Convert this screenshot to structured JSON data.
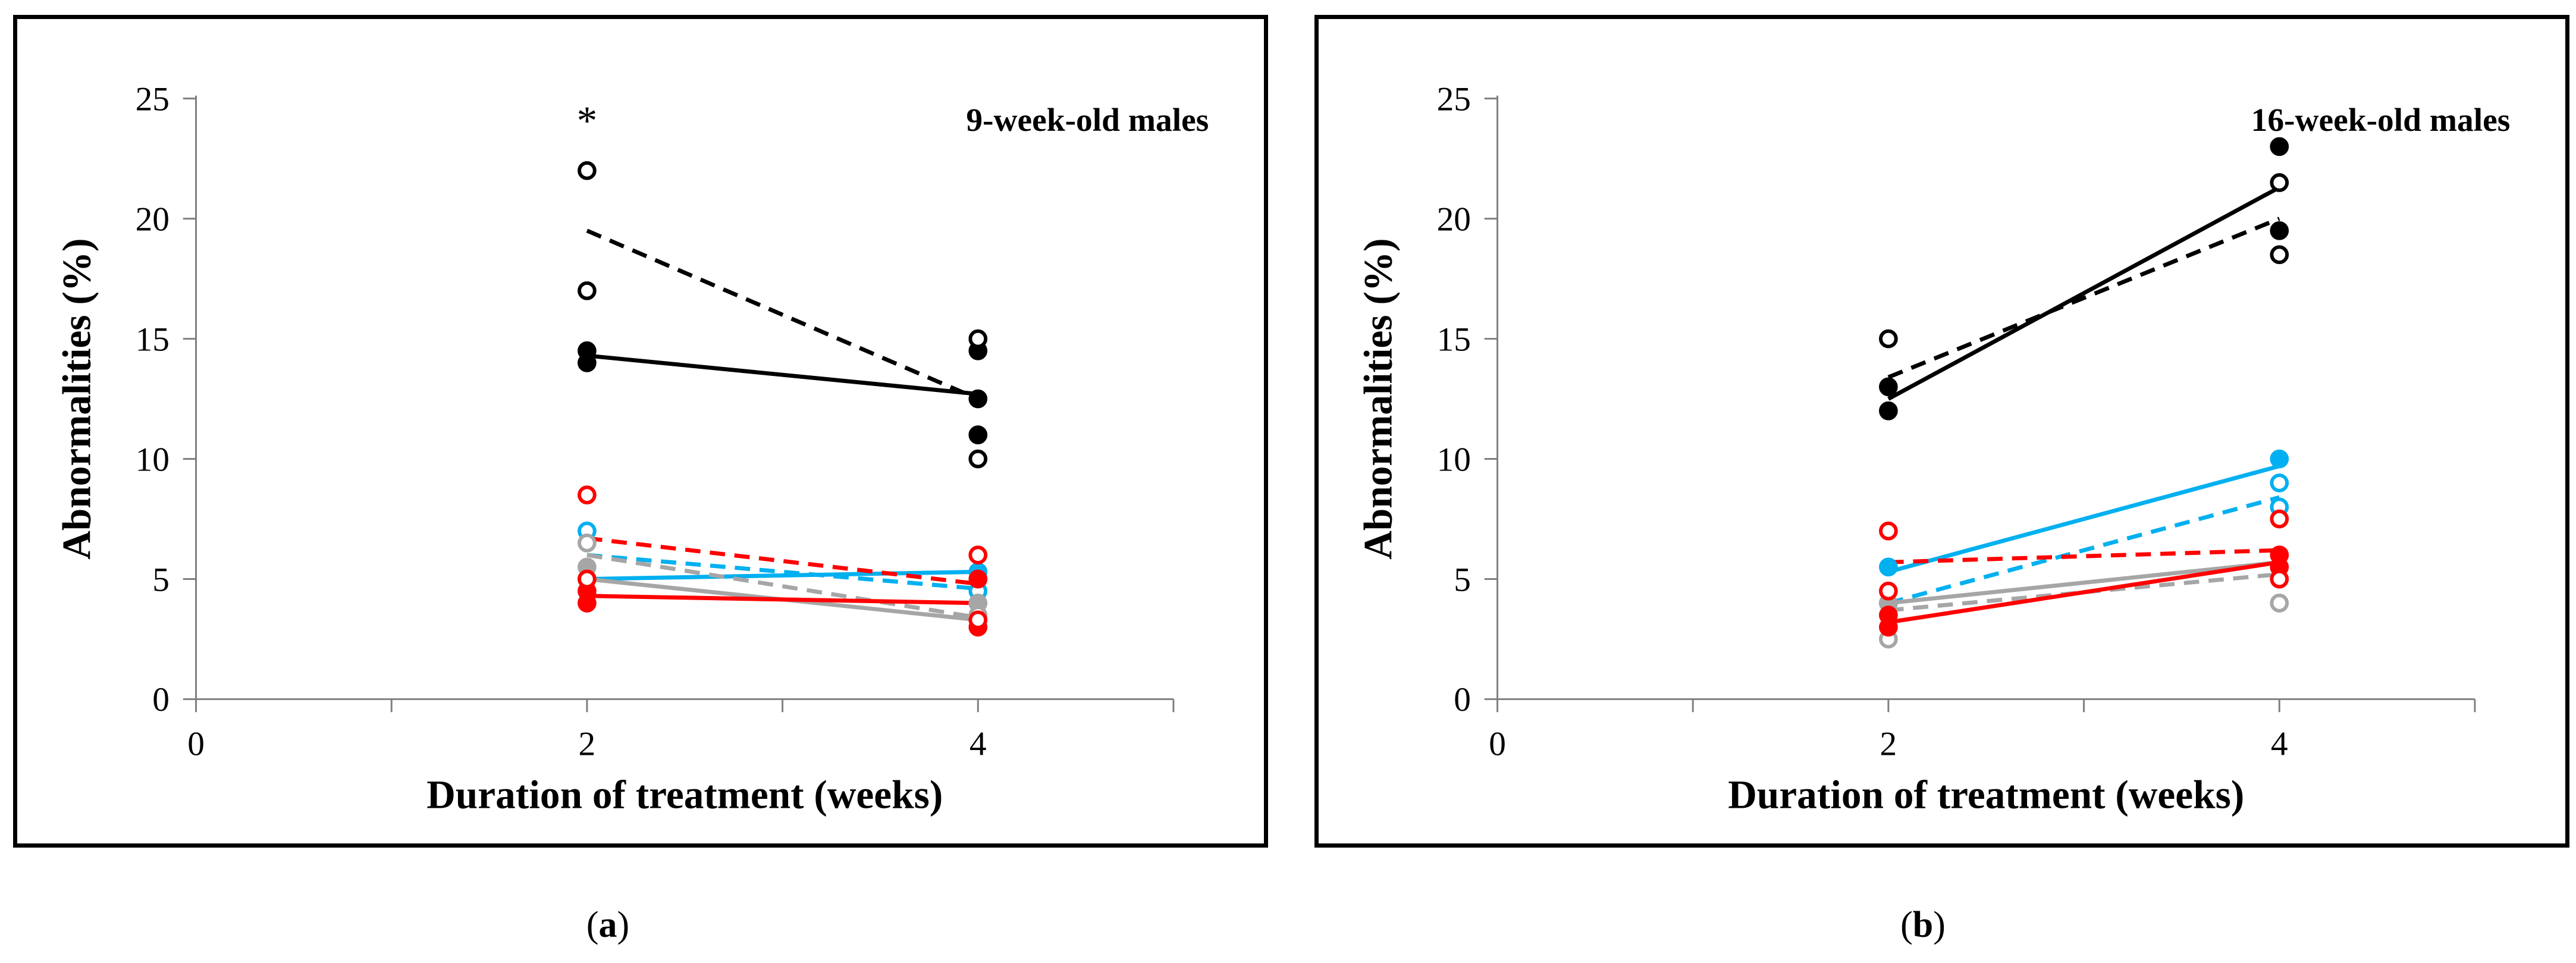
{
  "chart_data": [
    {
      "type": "scatter",
      "panel_label": "a",
      "title": "9-week-old males",
      "annotation": "*",
      "annotation_x": 2,
      "annotation_y": 24,
      "xlabel": "Duration of treatment (weeks)",
      "ylabel": "Abnormalities (%)",
      "xlim": [
        0,
        5
      ],
      "ylim": [
        0,
        25
      ],
      "xticks": [
        0,
        2,
        4
      ],
      "yticks": [
        0,
        5,
        10,
        15,
        20,
        25
      ],
      "series": [
        {
          "name": "black-filled",
          "color": "#000000",
          "marker": "filled",
          "points": [
            [
              2,
              14
            ],
            [
              2,
              14.5
            ],
            [
              4,
              14.5
            ],
            [
              4,
              11
            ],
            [
              4,
              12.5
            ]
          ]
        },
        {
          "name": "black-open",
          "color": "#000000",
          "marker": "open",
          "points": [
            [
              2,
              22
            ],
            [
              2,
              17
            ],
            [
              4,
              15
            ],
            [
              4,
              10
            ]
          ]
        },
        {
          "name": "blue-filled",
          "color": "#00B0F0",
          "marker": "filled",
          "points": [
            [
              2,
              5
            ],
            [
              4,
              5.3
            ]
          ]
        },
        {
          "name": "blue-open",
          "color": "#00B0F0",
          "marker": "open",
          "points": [
            [
              2,
              7
            ],
            [
              4,
              4.5
            ]
          ]
        },
        {
          "name": "gray-filled",
          "color": "#A6A6A6",
          "marker": "filled",
          "points": [
            [
              2,
              5.5
            ],
            [
              4,
              4
            ]
          ]
        },
        {
          "name": "gray-open",
          "color": "#A6A6A6",
          "marker": "open",
          "points": [
            [
              2,
              6.5
            ],
            [
              4,
              3.5
            ]
          ]
        },
        {
          "name": "red-filled",
          "color": "#FF0000",
          "marker": "filled",
          "points": [
            [
              2,
              4
            ],
            [
              2,
              4.5
            ],
            [
              4,
              3
            ],
            [
              4,
              5
            ]
          ]
        },
        {
          "name": "red-open",
          "color": "#FF0000",
          "marker": "open",
          "points": [
            [
              2,
              8.5
            ],
            [
              2,
              5
            ],
            [
              4,
              6
            ],
            [
              4,
              3.3
            ]
          ]
        }
      ],
      "trendlines": [
        {
          "color": "#000000",
          "style": "solid",
          "x": [
            2,
            4
          ],
          "y": [
            14.3,
            12.7
          ]
        },
        {
          "color": "#000000",
          "style": "dashed",
          "x": [
            2,
            4
          ],
          "y": [
            19.5,
            12.5
          ]
        },
        {
          "color": "#00B0F0",
          "style": "solid",
          "x": [
            2,
            4
          ],
          "y": [
            5.0,
            5.3
          ]
        },
        {
          "color": "#00B0F0",
          "style": "dashed",
          "x": [
            2,
            4
          ],
          "y": [
            6.0,
            4.6
          ]
        },
        {
          "color": "#A6A6A6",
          "style": "solid",
          "x": [
            2,
            4
          ],
          "y": [
            5.0,
            3.3
          ]
        },
        {
          "color": "#A6A6A6",
          "style": "dashed",
          "x": [
            2,
            4
          ],
          "y": [
            6.0,
            3.4
          ]
        },
        {
          "color": "#FF0000",
          "style": "solid",
          "x": [
            2,
            4
          ],
          "y": [
            4.3,
            4.0
          ]
        },
        {
          "color": "#FF0000",
          "style": "dashed",
          "x": [
            2,
            4
          ],
          "y": [
            6.7,
            4.8
          ]
        }
      ]
    },
    {
      "type": "scatter",
      "panel_label": "b",
      "title": "16-week-old males",
      "annotation": "",
      "xlabel": "Duration of treatment (weeks)",
      "ylabel": "Abnormalities (%)",
      "xlim": [
        0,
        5
      ],
      "ylim": [
        0,
        25
      ],
      "xticks": [
        0,
        2,
        4
      ],
      "yticks": [
        0,
        5,
        10,
        15,
        20,
        25
      ],
      "series": [
        {
          "name": "black-filled",
          "color": "#000000",
          "marker": "filled",
          "points": [
            [
              2,
              12
            ],
            [
              2,
              13
            ],
            [
              4,
              23
            ],
            [
              4,
              19.5
            ]
          ]
        },
        {
          "name": "black-open",
          "color": "#000000",
          "marker": "open",
          "points": [
            [
              2,
              15
            ],
            [
              4,
              21.5
            ],
            [
              4,
              18.5
            ]
          ]
        },
        {
          "name": "blue-filled",
          "color": "#00B0F0",
          "marker": "filled",
          "points": [
            [
              2,
              5.5
            ],
            [
              4,
              10
            ]
          ]
        },
        {
          "name": "blue-open",
          "color": "#00B0F0",
          "marker": "open",
          "points": [
            [
              2,
              4
            ],
            [
              4,
              9
            ],
            [
              4,
              8
            ]
          ]
        },
        {
          "name": "gray-filled",
          "color": "#A6A6A6",
          "marker": "filled",
          "points": [
            [
              2,
              4
            ],
            [
              4,
              5.5
            ]
          ]
        },
        {
          "name": "gray-open",
          "color": "#A6A6A6",
          "marker": "open",
          "points": [
            [
              2,
              2.5
            ],
            [
              4,
              4
            ]
          ]
        },
        {
          "name": "red-filled",
          "color": "#FF0000",
          "marker": "filled",
          "points": [
            [
              2,
              3
            ],
            [
              2,
              3.5
            ],
            [
              4,
              6
            ],
            [
              4,
              5.5
            ]
          ]
        },
        {
          "name": "red-open",
          "color": "#FF0000",
          "marker": "open",
          "points": [
            [
              2,
              7
            ],
            [
              2,
              4.5
            ],
            [
              4,
              7.5
            ],
            [
              4,
              5
            ]
          ]
        }
      ],
      "trendlines": [
        {
          "color": "#000000",
          "style": "solid",
          "x": [
            2,
            4
          ],
          "y": [
            12.5,
            21.3
          ]
        },
        {
          "color": "#000000",
          "style": "dashed",
          "x": [
            2,
            4
          ],
          "y": [
            13.4,
            20.0
          ]
        },
        {
          "color": "#00B0F0",
          "style": "solid",
          "x": [
            2,
            4
          ],
          "y": [
            5.3,
            9.7
          ]
        },
        {
          "color": "#00B0F0",
          "style": "dashed",
          "x": [
            2,
            4
          ],
          "y": [
            4.0,
            8.4
          ]
        },
        {
          "color": "#A6A6A6",
          "style": "solid",
          "x": [
            2,
            4
          ],
          "y": [
            4.0,
            5.7
          ]
        },
        {
          "color": "#A6A6A6",
          "style": "dashed",
          "x": [
            2,
            4
          ],
          "y": [
            3.7,
            5.2
          ]
        },
        {
          "color": "#FF0000",
          "style": "solid",
          "x": [
            2,
            4
          ],
          "y": [
            3.2,
            5.7
          ]
        },
        {
          "color": "#FF0000",
          "style": "dashed",
          "x": [
            2,
            4
          ],
          "y": [
            5.7,
            6.2
          ]
        }
      ]
    }
  ],
  "captions": {
    "a": "(a)",
    "b": "(b)"
  }
}
